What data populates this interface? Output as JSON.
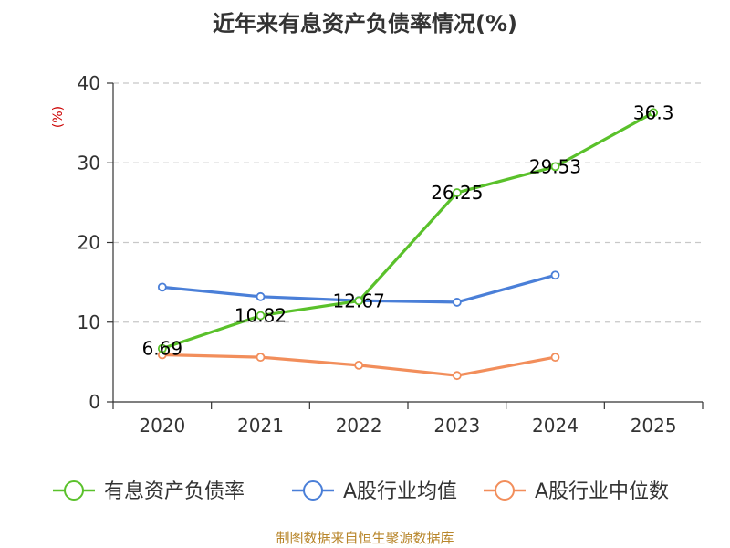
{
  "chart_data": {
    "type": "line",
    "title": "近年来有息资产负债率情况(%)",
    "ylabel": "(%)",
    "xlabel": "",
    "categories": [
      "2020",
      "2021",
      "2022",
      "2023",
      "2024",
      "2025"
    ],
    "ylim": [
      0,
      40
    ],
    "yticks": [
      0,
      10,
      20,
      30,
      40
    ],
    "grid": true,
    "legend_position": "bottom",
    "series": [
      {
        "name": "有息资产负债率",
        "color": "#5ac12b",
        "values": [
          6.69,
          10.82,
          12.67,
          26.25,
          29.53,
          36.3
        ],
        "labels": [
          "6.69",
          "10.82",
          "12.67",
          "26.25",
          "29.53",
          "36.3"
        ]
      },
      {
        "name": "A股行业均值",
        "color": "#4a7fd8",
        "values": [
          14.4,
          13.2,
          12.7,
          12.5,
          15.9,
          null
        ],
        "labels": []
      },
      {
        "name": "A股行业中位数",
        "color": "#f28e5b",
        "values": [
          5.9,
          5.6,
          4.6,
          3.3,
          5.6,
          null
        ],
        "labels": []
      }
    ]
  },
  "source": "制图数据来自恒生聚源数据库"
}
